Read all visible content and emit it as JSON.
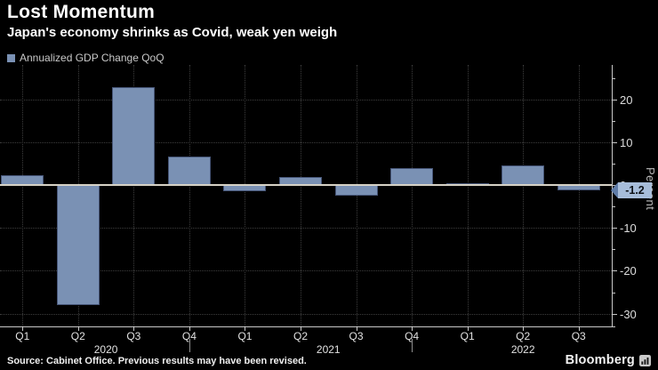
{
  "header": {
    "title": "Lost Momentum",
    "subtitle": "Japan's economy shrinks as Covid, weak yen weigh"
  },
  "legend": {
    "label": "Annualized GDP Change QoQ",
    "swatch_color": "#7A91B4"
  },
  "chart_data": {
    "type": "bar",
    "title": "Lost Momentum",
    "subtitle": "Japan's economy shrinks as Covid, weak yen weigh",
    "series_name": "Annualized GDP Change QoQ",
    "categories": [
      "Q1",
      "Q2",
      "Q3",
      "Q4",
      "Q1",
      "Q2",
      "Q3",
      "Q4",
      "Q1",
      "Q2",
      "Q3"
    ],
    "year_groups": [
      {
        "label": "2020",
        "start": 0,
        "end": 3
      },
      {
        "label": "2021",
        "start": 4,
        "end": 7
      },
      {
        "label": "2022",
        "start": 8,
        "end": 10
      }
    ],
    "values": [
      2.3,
      -28.1,
      22.9,
      6.7,
      -1.3,
      1.9,
      -2.5,
      4.0,
      0.2,
      4.7,
      -1.2
    ],
    "xlabel": "",
    "ylabel": "Percent",
    "ylim": [
      -33,
      27.7
    ],
    "y_major_ticks": [
      20,
      10,
      0,
      -10,
      -20,
      -30
    ],
    "y_minor_ticks": [
      25,
      15,
      5,
      -5,
      -15,
      -25
    ],
    "last_value_label": "-1.2",
    "grid": "dotted",
    "legend_position": "top-left",
    "bar_color": "#7A91B4",
    "bar_border_color": "#465577",
    "flag_bg_color": "#A7BDDA",
    "flag_tip_color": "#5F7CA8",
    "zero_line_color": "#d6d2c6",
    "background_color": "#000000"
  },
  "footer": {
    "source": "Source: Cabinet Office. Previous results may have been revised.",
    "brand": "Bloomberg"
  }
}
